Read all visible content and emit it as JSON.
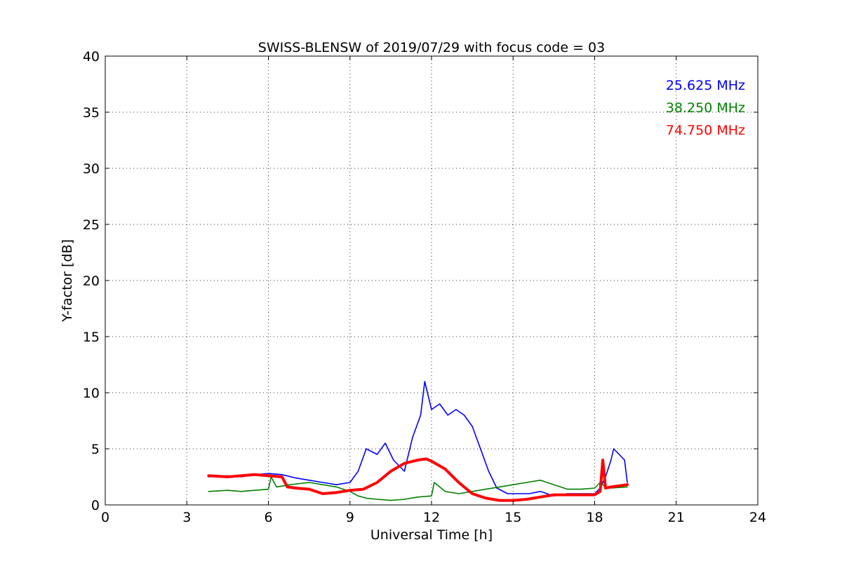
{
  "chart_data": {
    "type": "line",
    "title": "SWISS-BLENSW of 2019/07/29 with focus code = 03",
    "xlabel": "Universal Time [h]",
    "ylabel": "Y-factor [dB]",
    "xlim": [
      0,
      24
    ],
    "ylim": [
      0,
      40
    ],
    "xticks": [
      "0",
      "3",
      "6",
      "9",
      "12",
      "15",
      "18",
      "21",
      "24"
    ],
    "yticks": [
      "0",
      "5",
      "10",
      "15",
      "20",
      "25",
      "30",
      "35",
      "40"
    ],
    "grid": true,
    "legend_position": "top-right",
    "series": [
      {
        "name": "25.625 MHz",
        "color": "#0000ff",
        "x": [
          3.8,
          4.5,
          5.0,
          5.5,
          6.0,
          6.5,
          7.0,
          7.5,
          8.0,
          8.5,
          9.0,
          9.3,
          9.6,
          10.0,
          10.3,
          10.6,
          11.0,
          11.3,
          11.6,
          11.75,
          12.0,
          12.3,
          12.6,
          12.9,
          13.2,
          13.5,
          13.8,
          14.1,
          14.4,
          14.8,
          15.2,
          15.6,
          16.0,
          16.5,
          17.0,
          17.5,
          18.0,
          18.2,
          18.4,
          18.6,
          18.7,
          18.9,
          19.1,
          19.2
        ],
        "y": [
          2.5,
          2.6,
          2.5,
          2.7,
          2.8,
          2.7,
          2.4,
          2.2,
          2.0,
          1.8,
          2.0,
          3.0,
          5.0,
          4.5,
          5.5,
          4.0,
          3.0,
          6.0,
          8.0,
          11.0,
          8.5,
          9.0,
          8.0,
          8.5,
          8.0,
          7.0,
          5.0,
          3.0,
          1.5,
          1.0,
          1.0,
          1.0,
          1.2,
          0.8,
          1.0,
          1.0,
          1.0,
          1.5,
          2.5,
          4.0,
          5.0,
          4.5,
          4.0,
          2.0
        ]
      },
      {
        "name": "38.250 MHz",
        "color": "#008000",
        "x": [
          3.8,
          4.5,
          5.0,
          5.5,
          6.0,
          6.1,
          6.3,
          6.8,
          7.5,
          8.0,
          8.5,
          9.0,
          9.3,
          9.6,
          10.0,
          10.5,
          11.0,
          11.5,
          12.0,
          12.1,
          12.5,
          13.0,
          13.5,
          14.0,
          14.5,
          15.0,
          15.5,
          16.0,
          16.5,
          17.0,
          17.5,
          18.0,
          18.2,
          18.4,
          18.6,
          19.2
        ],
        "y": [
          1.2,
          1.3,
          1.2,
          1.3,
          1.4,
          2.5,
          1.6,
          1.8,
          2.0,
          1.8,
          1.6,
          1.2,
          0.8,
          0.6,
          0.5,
          0.4,
          0.5,
          0.7,
          0.8,
          2.0,
          1.2,
          1.0,
          1.2,
          1.4,
          1.6,
          1.8,
          2.0,
          2.2,
          1.8,
          1.4,
          1.4,
          1.5,
          2.0,
          1.6,
          1.5,
          1.6
        ]
      },
      {
        "name": "74.750 MHz",
        "color": "#ff0000",
        "x": [
          3.8,
          4.5,
          5.0,
          5.5,
          6.0,
          6.5,
          6.7,
          7.0,
          7.5,
          8.0,
          8.5,
          9.0,
          9.5,
          10.0,
          10.5,
          11.0,
          11.5,
          11.8,
          12.0,
          12.5,
          13.0,
          13.5,
          14.0,
          14.5,
          15.0,
          15.5,
          16.0,
          16.5,
          17.0,
          17.5,
          18.0,
          18.2,
          18.3,
          18.4,
          18.6,
          19.2
        ],
        "y": [
          2.6,
          2.5,
          2.6,
          2.7,
          2.6,
          2.5,
          1.6,
          1.5,
          1.4,
          1.0,
          1.1,
          1.3,
          1.4,
          2.0,
          3.0,
          3.7,
          4.0,
          4.1,
          3.9,
          3.2,
          2.0,
          1.0,
          0.6,
          0.4,
          0.4,
          0.5,
          0.7,
          0.9,
          0.9,
          0.9,
          0.9,
          1.2,
          4.0,
          1.5,
          1.6,
          1.8
        ]
      }
    ]
  }
}
